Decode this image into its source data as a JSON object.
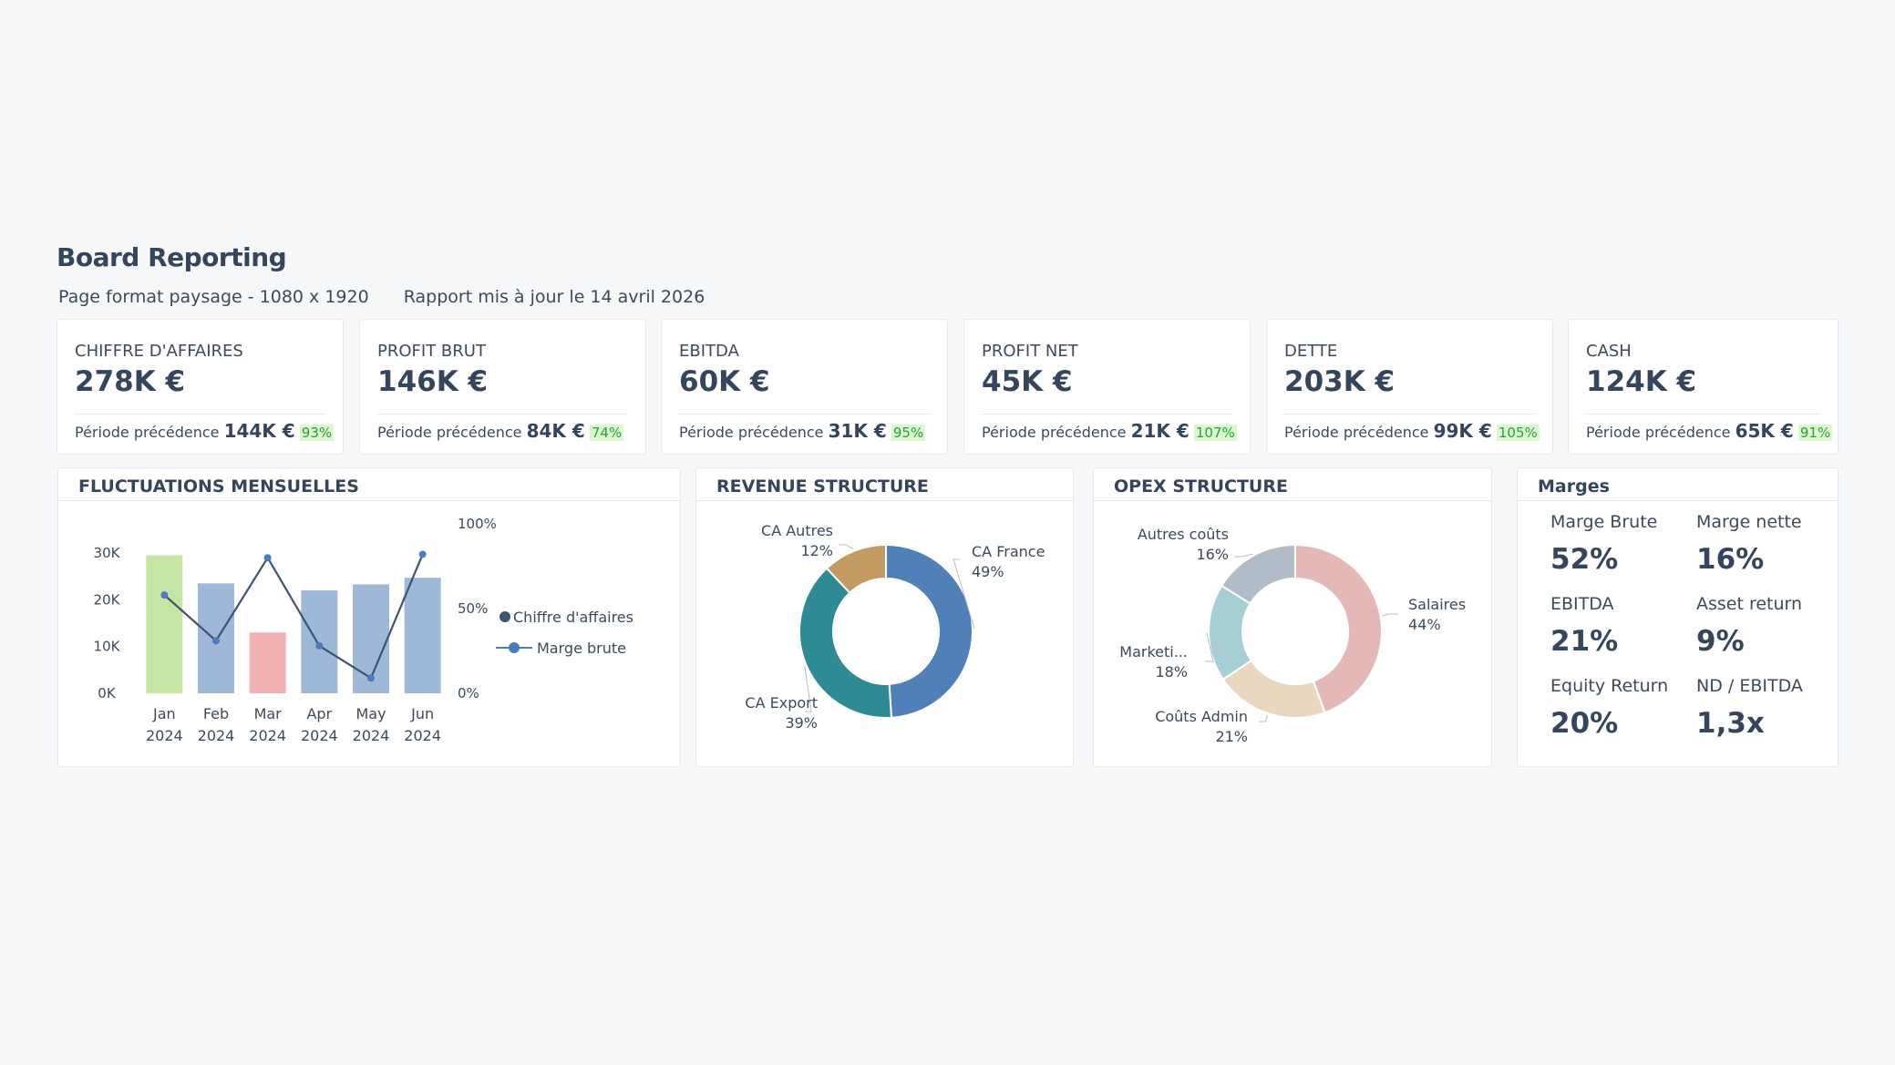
{
  "header": {
    "title": "Board Reporting",
    "format": "Page format paysage - 1080 x 1920",
    "updated": "Rapport mis à jour le 14 avril 2026"
  },
  "kpis": [
    {
      "label": "CHIFFRE D'AFFAIRES",
      "value": "278K €",
      "prev_label": "Période précédence",
      "prev_value": "144K €",
      "pct": "93%"
    },
    {
      "label": "PROFIT BRUT",
      "value": "146K €",
      "prev_label": "Période précédence",
      "prev_value": "84K €",
      "pct": "74%"
    },
    {
      "label": "EBITDA",
      "value": "60K €",
      "prev_label": "Période précédence",
      "prev_value": "31K €",
      "pct": "95%"
    },
    {
      "label": "PROFIT NET",
      "value": "45K €",
      "prev_label": "Période précédence",
      "prev_value": "21K €",
      "pct": "107%"
    },
    {
      "label": "DETTE",
      "value": "203K €",
      "prev_label": "Période précédence",
      "prev_value": "99K €",
      "pct": "105%"
    },
    {
      "label": "CASH",
      "value": "124K €",
      "prev_label": "Période précédence",
      "prev_value": "65K €",
      "pct": "91%"
    }
  ],
  "chart_data": [
    {
      "type": "bar",
      "title": "FLUCTUATIONS MENSUELLES",
      "categories": [
        "Jan 2024",
        "Feb 2024",
        "Mar 2024",
        "Apr 2024",
        "May 2024",
        "Jun 2024"
      ],
      "series": [
        {
          "name": "Chiffre d'affaires",
          "values": [
            29500,
            23500,
            13000,
            22000,
            23300,
            24700
          ],
          "colors": [
            "#c5e5a5",
            "#9fb8d8",
            "#f2b1b1",
            "#9fb8d8",
            "#9fb8d8",
            "#9fb8d8"
          ]
        },
        {
          "name": "Marge brute",
          "type": "line",
          "axis": "right",
          "values": [
            58,
            31,
            80,
            28,
            9,
            82
          ],
          "color": "#3d5571"
        }
      ],
      "yaxis_left": {
        "ticks": [
          "0K",
          "10K",
          "20K",
          "30K"
        ],
        "range": [
          0,
          30000
        ]
      },
      "yaxis_right": {
        "ticks": [
          "0%",
          "50%",
          "100%"
        ],
        "range": [
          0,
          100
        ]
      },
      "legend": "right"
    },
    {
      "type": "pie",
      "title": "REVENUE STRUCTURE",
      "slices": [
        {
          "name": "CA France",
          "value": 49,
          "label": "49%",
          "color": "#4f80b8"
        },
        {
          "name": "CA Export",
          "value": 39,
          "label": "39%",
          "color": "#2e8b96"
        },
        {
          "name": "CA Autres",
          "value": 12,
          "label": "12%",
          "color": "#c49a63"
        }
      ]
    },
    {
      "type": "pie",
      "title": "OPEX STRUCTURE",
      "slices": [
        {
          "name": "Salaires",
          "value": 44,
          "label": "44%",
          "color": "#e5b8b8"
        },
        {
          "name": "Coûts Admin",
          "value": 21,
          "label": "21%",
          "color": "#ead7c0"
        },
        {
          "name": "Marketi...",
          "value": 18,
          "label": "18%",
          "color": "#a7cdd5"
        },
        {
          "name": "Autres coûts",
          "value": 16,
          "label": "16%",
          "color": "#b2bcc8"
        }
      ]
    }
  ],
  "marges": {
    "title": "Marges",
    "items": [
      {
        "label": "Marge Brute",
        "value": "52%"
      },
      {
        "label": "Marge nette",
        "value": "16%"
      },
      {
        "label": "EBITDA",
        "value": "21%"
      },
      {
        "label": "Asset return",
        "value": "9%"
      },
      {
        "label": "Equity Return",
        "value": "20%"
      },
      {
        "label": "ND / EBITDA",
        "value": "1,3x"
      }
    ]
  }
}
